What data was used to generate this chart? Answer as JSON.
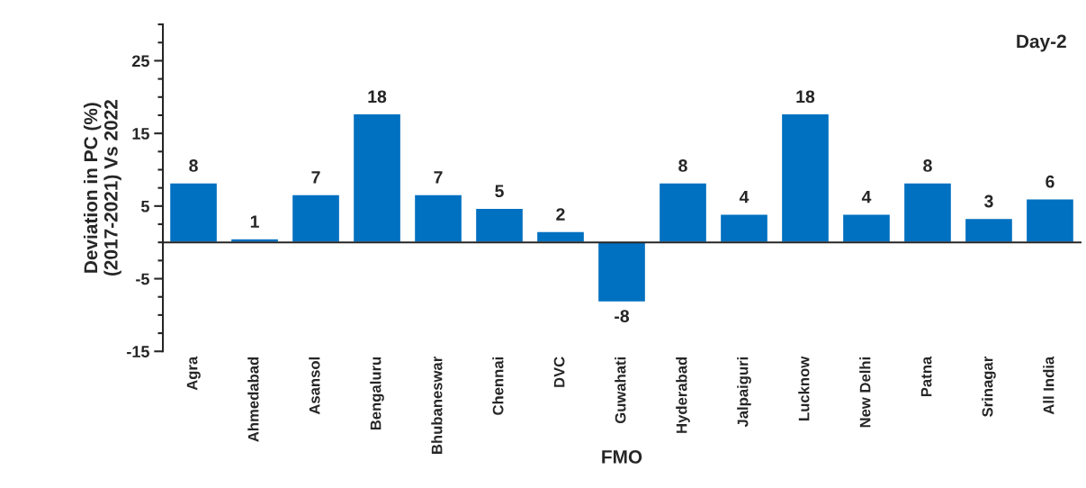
{
  "chart_data": {
    "type": "bar",
    "xlabel": "FMO",
    "ylabel": "Deviation in PC (%)\n(2017-2021) Vs 2022",
    "categories": [
      "Agra",
      "Ahmedabad",
      "Asansol",
      "Bengaluru",
      "Bhubaneswar",
      "Chennai",
      "DVC",
      "Guwahati",
      "Hyderabad",
      "Jalpaiguri",
      "Lucknow",
      "New Delhi",
      "Patna",
      "Srinagar",
      "All India"
    ],
    "values": [
      8.2,
      0.5,
      6.6,
      17.7,
      6.6,
      4.7,
      1.5,
      -8.2,
      8.2,
      3.9,
      17.7,
      3.9,
      8.2,
      3.3,
      6.0
    ],
    "value_labels": [
      "8",
      "1",
      "7",
      "18",
      "7",
      "5",
      "2",
      "-8",
      "8",
      "4",
      "18",
      "4",
      "8",
      "3",
      "6"
    ],
    "color": "#0070c0",
    "ylim": [
      -15,
      30
    ],
    "yticks": [
      -15,
      -5,
      5,
      15,
      25
    ],
    "annotations": [
      "Day-2"
    ],
    "grid": false,
    "legend": false
  }
}
